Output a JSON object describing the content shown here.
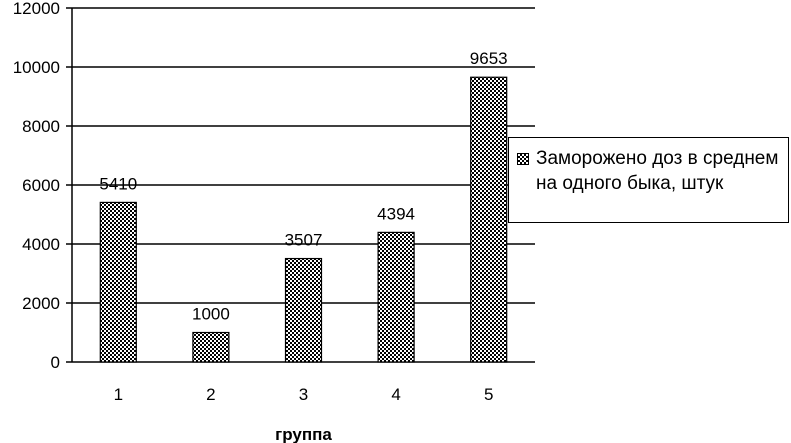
{
  "chart_data": {
    "type": "bar",
    "categories": [
      "1",
      "2",
      "3",
      "4",
      "5"
    ],
    "series": [
      {
        "name": "Заморожено доз в среднем на одного быка, штук",
        "values": [
          5410,
          1000,
          3507,
          4394,
          9653
        ]
      }
    ],
    "data_labels": [
      "5410",
      "1000",
      "3507",
      "4394",
      "9653"
    ],
    "xlabel": "группа",
    "ylabel": "",
    "ylim": [
      0,
      12000
    ],
    "yticks": [
      "0",
      "2000",
      "4000",
      "6000",
      "8000",
      "10000",
      "12000"
    ],
    "grid": true,
    "legend_position": "right",
    "colors": {
      "bar_fill": "#000000",
      "bar_background": "#ffffff",
      "grid": "#000000"
    }
  }
}
